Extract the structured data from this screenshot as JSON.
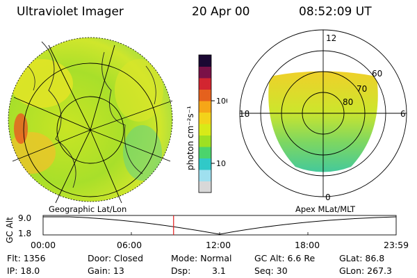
{
  "header": {
    "instrument": "Ultraviolet Imager",
    "date": "20 Apr 00",
    "time": "08:52:09 UT"
  },
  "geo_panel": {
    "label": "Geographic Lat/Lon"
  },
  "mag_panel": {
    "label": "Apex MLat/MLT",
    "mlt_labels": [
      "12",
      "18",
      "6",
      "0"
    ],
    "lat_labels": [
      "60",
      "70",
      "80"
    ]
  },
  "colorbar": {
    "unit": "photon cm⁻²s⁻¹",
    "scale": "log",
    "ticks": [
      "100",
      "10"
    ],
    "colors": [
      "#d8d8d8",
      "#9fe0ef",
      "#30c9c8",
      "#4bd46c",
      "#9ee022",
      "#d8ea18",
      "#f3d31a",
      "#f6a617",
      "#e5611d",
      "#d22530",
      "#7a1147",
      "#1b0833"
    ]
  },
  "altitude_plot": {
    "ylabel": "GC Alt",
    "yticks": [
      "9.0",
      "1.8"
    ],
    "xticks": [
      "00:00",
      "06:00",
      "12:00",
      "18:00",
      "23:59"
    ],
    "current_time_hours": 8.87
  },
  "status": {
    "flt": "Flt: 1356",
    "ip": "IP: 18.0",
    "door": "Door: Closed",
    "gain": "Gain: 13",
    "mode": "Mode: Normal",
    "dsp_label": "Dsp:",
    "dsp_value": "3.1",
    "gc_alt": "GC Alt: 6.6 Re",
    "seq": "Seq: 30",
    "glat": "GLat: 86.8",
    "glon": "GLon: 267.3"
  }
}
